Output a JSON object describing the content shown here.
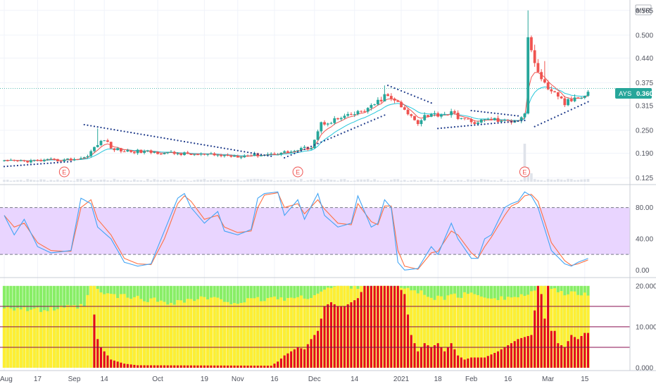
{
  "currency": "MYR",
  "ticker": "AYS",
  "last_price": "0.360",
  "colors": {
    "up": "#26a69a",
    "down": "#ef5350",
    "ema_fast": "#ef5350",
    "ema_slow": "#26c6da",
    "psar": "#1e3a8a",
    "stoch_k": "#42a5f5",
    "stoch_d": "#ff7043",
    "stoch_band": "#e9d5ff",
    "osc_red": "#e5001f",
    "osc_yellow": "#ffee33",
    "osc_green": "#88ee66",
    "hline": "#880e4f",
    "price_tag": "#26a69a"
  },
  "x_axis": {
    "ticks": [
      {
        "label": "Aug",
        "index": 0
      },
      {
        "label": "17",
        "index": 10
      },
      {
        "label": "Sep",
        "index": 21
      },
      {
        "label": "14",
        "index": 30
      },
      {
        "label": "Oct",
        "index": 46
      },
      {
        "label": "19",
        "index": 60
      },
      {
        "label": "Nov",
        "index": 70
      },
      {
        "label": "16",
        "index": 81
      },
      {
        "label": "Dec",
        "index": 93
      },
      {
        "label": "14",
        "index": 105
      },
      {
        "label": "2021",
        "index": 119
      },
      {
        "label": "18",
        "index": 130
      },
      {
        "label": "Feb",
        "index": 140
      },
      {
        "label": "16",
        "index": 151
      },
      {
        "label": "Mar",
        "index": 163
      },
      {
        "label": "15",
        "index": 174
      }
    ]
  },
  "earnings_markers": [
    {
      "label": "E",
      "index": 18
    },
    {
      "label": "E",
      "index": 88
    },
    {
      "label": "E",
      "index": 156
    }
  ],
  "chart_data": [
    {
      "type": "candlestick",
      "name": "price",
      "y_ticks": [
        "0.565",
        "0.500",
        "0.440",
        "0.375",
        "0.315",
        "0.250",
        "0.190",
        "0.125"
      ],
      "y_tick_values": [
        0.565,
        0.5,
        0.44,
        0.375,
        0.315,
        0.25,
        0.19,
        0.125
      ],
      "ylim": [
        0.115,
        0.585
      ],
      "last_value": 0.36,
      "anchors": [
        [
          0,
          0.168
        ],
        [
          8,
          0.17
        ],
        [
          18,
          0.172
        ],
        [
          24,
          0.178
        ],
        [
          28,
          0.212
        ],
        [
          30,
          0.228
        ],
        [
          32,
          0.203
        ],
        [
          36,
          0.196
        ],
        [
          46,
          0.192
        ],
        [
          58,
          0.186
        ],
        [
          70,
          0.183
        ],
        [
          80,
          0.188
        ],
        [
          87,
          0.196
        ],
        [
          92,
          0.207
        ],
        [
          95,
          0.268
        ],
        [
          102,
          0.284
        ],
        [
          106,
          0.296
        ],
        [
          110,
          0.31
        ],
        [
          114,
          0.34
        ],
        [
          117,
          0.33
        ],
        [
          120,
          0.3
        ],
        [
          124,
          0.272
        ],
        [
          126,
          0.29
        ],
        [
          134,
          0.295
        ],
        [
          140,
          0.27
        ],
        [
          146,
          0.28
        ],
        [
          150,
          0.272
        ],
        [
          154,
          0.28
        ],
        [
          156,
          0.295
        ],
        [
          157,
          0.5
        ],
        [
          159,
          0.42
        ],
        [
          161,
          0.39
        ],
        [
          163,
          0.35
        ],
        [
          166,
          0.342
        ],
        [
          168,
          0.32
        ],
        [
          170,
          0.33
        ],
        [
          172,
          0.34
        ],
        [
          175,
          0.35
        ]
      ],
      "spikes": [
        {
          "index": 157,
          "high": 0.565
        },
        {
          "index": 159,
          "high": 0.475
        },
        {
          "index": 162,
          "high": 0.432
        },
        {
          "index": 114,
          "high": 0.368
        },
        {
          "index": 28,
          "high": 0.255
        }
      ],
      "psar_segments": [
        {
          "from": 0,
          "to": 20,
          "start": 0.155,
          "end": 0.168
        },
        {
          "from": 24,
          "to": 80,
          "start": 0.265,
          "end": 0.182
        },
        {
          "from": 84,
          "to": 114,
          "start": 0.178,
          "end": 0.29
        },
        {
          "from": 115,
          "to": 128,
          "start": 0.368,
          "end": 0.322
        },
        {
          "from": 130,
          "to": 156,
          "start": 0.255,
          "end": 0.276
        },
        {
          "from": 140,
          "to": 154,
          "start": 0.302,
          "end": 0.288
        },
        {
          "from": 159,
          "to": 175,
          "start": 0.26,
          "end": 0.325
        }
      ],
      "volume_spikes": [
        {
          "index": 156,
          "value": 0.9
        },
        {
          "index": 157,
          "value": 0.35
        },
        {
          "index": 158,
          "value": 0.2
        }
      ]
    },
    {
      "type": "line",
      "name": "stochastic",
      "y_ticks": [
        "80.00",
        "40.00",
        "0.00"
      ],
      "y_tick_values": [
        80,
        40,
        0
      ],
      "ylim": [
        -6,
        104
      ],
      "band": [
        20,
        80
      ],
      "k_anchors": [
        [
          0,
          70
        ],
        [
          3,
          45
        ],
        [
          6,
          65
        ],
        [
          10,
          30
        ],
        [
          14,
          22
        ],
        [
          18,
          24
        ],
        [
          20,
          25
        ],
        [
          23,
          92
        ],
        [
          26,
          85
        ],
        [
          28,
          55
        ],
        [
          32,
          40
        ],
        [
          36,
          10
        ],
        [
          40,
          5
        ],
        [
          44,
          8
        ],
        [
          48,
          50
        ],
        [
          52,
          92
        ],
        [
          54,
          98
        ],
        [
          56,
          80
        ],
        [
          60,
          60
        ],
        [
          64,
          75
        ],
        [
          66,
          50
        ],
        [
          70,
          45
        ],
        [
          74,
          52
        ],
        [
          76,
          92
        ],
        [
          78,
          98
        ],
        [
          82,
          100
        ],
        [
          84,
          70
        ],
        [
          88,
          90
        ],
        [
          90,
          65
        ],
        [
          94,
          98
        ],
        [
          96,
          70
        ],
        [
          100,
          55
        ],
        [
          104,
          60
        ],
        [
          106,
          95
        ],
        [
          110,
          55
        ],
        [
          112,
          60
        ],
        [
          114,
          90
        ],
        [
          116,
          80
        ],
        [
          118,
          10
        ],
        [
          120,
          0
        ],
        [
          124,
          2
        ],
        [
          128,
          30
        ],
        [
          130,
          20
        ],
        [
          134,
          60
        ],
        [
          136,
          40
        ],
        [
          140,
          15
        ],
        [
          142,
          15
        ],
        [
          144,
          40
        ],
        [
          146,
          45
        ],
        [
          150,
          80
        ],
        [
          152,
          85
        ],
        [
          154,
          88
        ],
        [
          156,
          100
        ],
        [
          158,
          95
        ],
        [
          160,
          80
        ],
        [
          164,
          25
        ],
        [
          168,
          8
        ],
        [
          170,
          5
        ],
        [
          172,
          10
        ],
        [
          175,
          15
        ]
      ],
      "d_anchors": [
        [
          0,
          70
        ],
        [
          3,
          55
        ],
        [
          6,
          60
        ],
        [
          10,
          35
        ],
        [
          14,
          25
        ],
        [
          18,
          24
        ],
        [
          20,
          24
        ],
        [
          23,
          80
        ],
        [
          26,
          90
        ],
        [
          28,
          65
        ],
        [
          32,
          45
        ],
        [
          36,
          15
        ],
        [
          40,
          8
        ],
        [
          44,
          7
        ],
        [
          48,
          40
        ],
        [
          52,
          85
        ],
        [
          54,
          95
        ],
        [
          56,
          88
        ],
        [
          60,
          65
        ],
        [
          64,
          70
        ],
        [
          66,
          55
        ],
        [
          70,
          48
        ],
        [
          74,
          50
        ],
        [
          76,
          80
        ],
        [
          78,
          96
        ],
        [
          82,
          99
        ],
        [
          84,
          80
        ],
        [
          88,
          85
        ],
        [
          90,
          72
        ],
        [
          94,
          90
        ],
        [
          96,
          78
        ],
        [
          100,
          60
        ],
        [
          104,
          58
        ],
        [
          106,
          85
        ],
        [
          110,
          62
        ],
        [
          112,
          58
        ],
        [
          114,
          82
        ],
        [
          116,
          82
        ],
        [
          118,
          25
        ],
        [
          120,
          5
        ],
        [
          124,
          1
        ],
        [
          128,
          22
        ],
        [
          130,
          24
        ],
        [
          134,
          50
        ],
        [
          136,
          45
        ],
        [
          140,
          22
        ],
        [
          142,
          15
        ],
        [
          144,
          30
        ],
        [
          146,
          42
        ],
        [
          150,
          70
        ],
        [
          152,
          82
        ],
        [
          154,
          86
        ],
        [
          156,
          95
        ],
        [
          158,
          97
        ],
        [
          160,
          88
        ],
        [
          164,
          35
        ],
        [
          168,
          12
        ],
        [
          170,
          6
        ],
        [
          172,
          8
        ],
        [
          175,
          13
        ]
      ]
    },
    {
      "type": "bar",
      "name": "oscillator",
      "y_ticks": [
        "20.000",
        "10.000",
        "0.000"
      ],
      "y_tick_values": [
        20,
        10,
        0
      ],
      "ylim": [
        0,
        21
      ],
      "hlines": [
        15,
        10,
        5
      ],
      "red_anchors": [
        [
          0,
          0
        ],
        [
          26,
          0
        ],
        [
          27,
          13
        ],
        [
          28,
          7
        ],
        [
          29,
          5
        ],
        [
          30,
          4
        ],
        [
          31,
          3
        ],
        [
          32,
          2
        ],
        [
          36,
          1
        ],
        [
          40,
          0.6
        ],
        [
          80,
          0.5
        ],
        [
          82,
          1.5
        ],
        [
          84,
          3
        ],
        [
          86,
          4
        ],
        [
          88,
          5
        ],
        [
          90,
          4.5
        ],
        [
          92,
          7
        ],
        [
          94,
          9
        ],
        [
          96,
          15
        ],
        [
          98,
          16
        ],
        [
          100,
          15
        ],
        [
          102,
          15
        ],
        [
          104,
          16
        ],
        [
          106,
          17
        ],
        [
          108,
          20
        ],
        [
          118,
          20
        ],
        [
          120,
          18
        ],
        [
          122,
          8
        ],
        [
          124,
          4
        ],
        [
          126,
          6
        ],
        [
          128,
          5
        ],
        [
          130,
          6
        ],
        [
          132,
          4
        ],
        [
          134,
          6
        ],
        [
          136,
          3
        ],
        [
          138,
          2
        ],
        [
          140,
          2.5
        ],
        [
          144,
          2.5
        ],
        [
          148,
          4
        ],
        [
          150,
          5
        ],
        [
          154,
          7
        ],
        [
          158,
          8
        ],
        [
          160,
          20
        ],
        [
          161,
          18
        ],
        [
          162,
          12
        ],
        [
          163,
          20
        ],
        [
          164,
          9
        ],
        [
          165,
          9
        ],
        [
          166,
          6
        ],
        [
          168,
          5
        ],
        [
          170,
          8
        ],
        [
          172,
          7
        ],
        [
          174,
          8.5
        ],
        [
          175,
          8.5
        ]
      ],
      "yellow_anchors": [
        [
          0,
          15
        ],
        [
          10,
          14
        ],
        [
          24,
          15
        ],
        [
          26,
          20
        ],
        [
          30,
          18
        ],
        [
          40,
          17
        ],
        [
          50,
          16
        ],
        [
          60,
          17
        ],
        [
          70,
          16
        ],
        [
          80,
          17
        ],
        [
          90,
          17
        ],
        [
          96,
          19
        ],
        [
          100,
          20
        ],
        [
          118,
          20
        ],
        [
          122,
          19
        ],
        [
          130,
          17
        ],
        [
          140,
          18
        ],
        [
          150,
          17
        ],
        [
          158,
          18
        ],
        [
          160,
          20
        ],
        [
          164,
          20
        ],
        [
          168,
          18
        ],
        [
          175,
          18
        ]
      ]
    }
  ]
}
